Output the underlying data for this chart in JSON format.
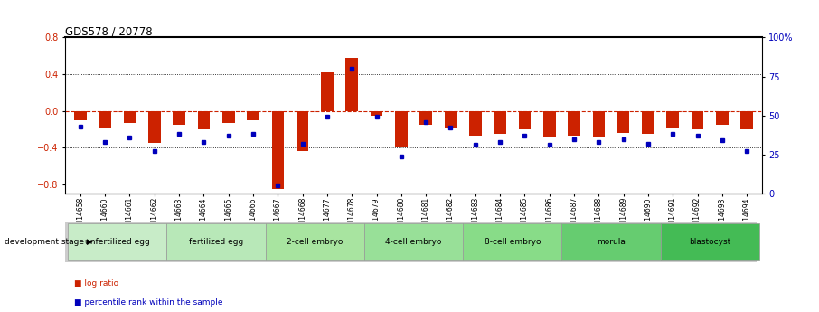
{
  "title": "GDS578 / 20778",
  "samples": [
    "GSM14658",
    "GSM14660",
    "GSM14661",
    "GSM14662",
    "GSM14663",
    "GSM14664",
    "GSM14665",
    "GSM14666",
    "GSM14667",
    "GSM14668",
    "GSM14677",
    "GSM14678",
    "GSM14679",
    "GSM14680",
    "GSM14681",
    "GSM14682",
    "GSM14683",
    "GSM14684",
    "GSM14685",
    "GSM14686",
    "GSM14687",
    "GSM14688",
    "GSM14689",
    "GSM14690",
    "GSM14691",
    "GSM14692",
    "GSM14693",
    "GSM14694"
  ],
  "log_ratio": [
    -0.1,
    -0.18,
    -0.13,
    -0.35,
    -0.15,
    -0.2,
    -0.13,
    -0.1,
    -0.85,
    -0.44,
    0.42,
    0.58,
    -0.05,
    -0.4,
    -0.15,
    -0.18,
    -0.27,
    -0.25,
    -0.2,
    -0.28,
    -0.27,
    -0.28,
    -0.24,
    -0.25,
    -0.18,
    -0.2,
    -0.15,
    -0.2
  ],
  "percentile_rank": [
    43,
    33,
    36,
    27,
    38,
    33,
    37,
    38,
    5,
    32,
    49,
    80,
    49,
    24,
    46,
    42,
    31,
    33,
    37,
    31,
    35,
    33,
    35,
    32,
    38,
    37,
    34,
    27
  ],
  "stages": [
    {
      "label": "unfertilized egg",
      "start": 0,
      "end": 4,
      "color": "#c8ecc8"
    },
    {
      "label": "fertilized egg",
      "start": 4,
      "end": 8,
      "color": "#b8e8b8"
    },
    {
      "label": "2-cell embryo",
      "start": 8,
      "end": 12,
      "color": "#a8e4a0"
    },
    {
      "label": "4-cell embryo",
      "start": 12,
      "end": 16,
      "color": "#98e098"
    },
    {
      "label": "8-cell embryo",
      "start": 16,
      "end": 20,
      "color": "#88dc88"
    },
    {
      "label": "morula",
      "start": 20,
      "end": 24,
      "color": "#66cc70"
    },
    {
      "label": "blastocyst",
      "start": 24,
      "end": 28,
      "color": "#44bb55"
    }
  ],
  "bar_color": "#cc2200",
  "dot_color": "#0000bb",
  "ylim_left": [
    -0.9,
    0.8
  ],
  "ylim_right": [
    0,
    100
  ],
  "yticks_left": [
    -0.8,
    -0.4,
    0.0,
    0.4,
    0.8
  ],
  "yticks_right": [
    0,
    25,
    50,
    75,
    100
  ],
  "ytick_labels_right": [
    "0",
    "25",
    "50",
    "75",
    "100%"
  ],
  "bg_color": "#ffffff"
}
